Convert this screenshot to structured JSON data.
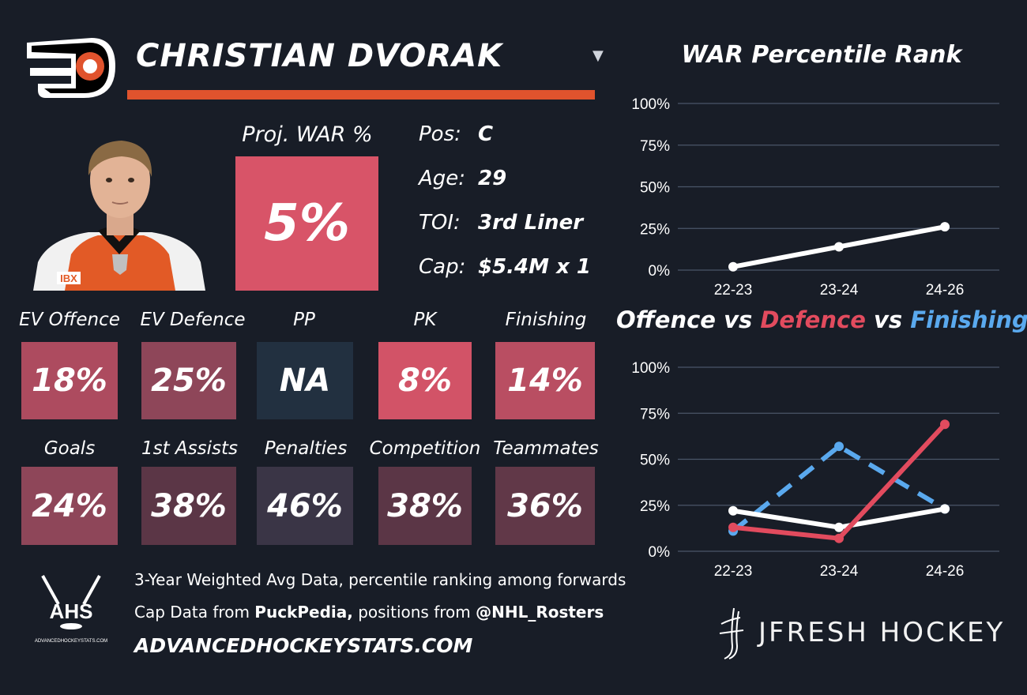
{
  "player": {
    "name": "CHRISTIAN DVORAK",
    "team_logo": "flyers-logo",
    "photo": "player-headshot"
  },
  "projection": {
    "label": "Proj. WAR %",
    "value": "5%"
  },
  "info": [
    {
      "key": "Pos:",
      "value": "C"
    },
    {
      "key": "Age:",
      "value": "29"
    },
    {
      "key": "TOI:",
      "value": "3rd Liner"
    },
    {
      "key": "Cap:",
      "value": "$5.4M x 1"
    }
  ],
  "tiles_row1": [
    {
      "label": "EV Offence",
      "value": "18%",
      "color": "#ad4b5f"
    },
    {
      "label": "EV Defence",
      "value": "25%",
      "color": "#8e4659"
    },
    {
      "label": "PP",
      "value": "NA",
      "color": "#223040"
    },
    {
      "label": "PK",
      "value": "8%",
      "color": "#d25367"
    },
    {
      "label": "Finishing",
      "value": "14%",
      "color": "#b94e62"
    }
  ],
  "tiles_row2": [
    {
      "label": "Goals",
      "value": "24%",
      "color": "#8e4659"
    },
    {
      "label": "1st Assists",
      "value": "38%",
      "color": "#5b3646"
    },
    {
      "label": "Penalties",
      "value": "46%",
      "color": "#3a3546"
    },
    {
      "label": "Competition",
      "value": "38%",
      "color": "#5b3646"
    },
    {
      "label": "Teammates",
      "value": "36%",
      "color": "#613848"
    }
  ],
  "footer": {
    "line1": "3-Year Weighted Avg Data, percentile ranking among forwards",
    "line2_prefix": "Cap Data from ",
    "line2_bold1": "PuckPedia,",
    "line2_mid": " positions from ",
    "line2_bold2": "@NHL_Rosters",
    "site": "ADVANCEDHOCKEYSTATS.COM",
    "ahs_logo_text": "AHS",
    "ahs_logo_small": "ADVANCEDHOCKEYSTATS.COM"
  },
  "brand": {
    "name": "JFRESH HOCKEY"
  },
  "colors": {
    "accent_orange": "#e0532d",
    "defence_red": "#e24b5e",
    "finishing_blue": "#5aa9ee",
    "offence_white": "#ffffff"
  },
  "chart_data": [
    {
      "type": "line",
      "title": "WAR Percentile Rank",
      "categories": [
        "22-23",
        "23-24",
        "24-26"
      ],
      "yticks": [
        "0%",
        "25%",
        "50%",
        "75%",
        "100%"
      ],
      "ylim": [
        0,
        100
      ],
      "grid": true,
      "series": [
        {
          "values": [
            2,
            14,
            26
          ],
          "color": "#ffffff",
          "dashed": false
        }
      ]
    },
    {
      "type": "line",
      "title_parts": [
        {
          "text": "Offence",
          "color": "#ffffff"
        },
        {
          "text": " vs ",
          "color": "#ffffff"
        },
        {
          "text": "Defence",
          "color": "#e24b5e"
        },
        {
          "text": " vs ",
          "color": "#ffffff"
        },
        {
          "text": "Finishing",
          "color": "#5aa9ee"
        }
      ],
      "categories": [
        "22-23",
        "23-24",
        "24-26"
      ],
      "yticks": [
        "0%",
        "25%",
        "50%",
        "75%",
        "100%"
      ],
      "ylim": [
        0,
        100
      ],
      "grid": true,
      "series": [
        {
          "name": "Finishing",
          "values": [
            11,
            57,
            23
          ],
          "color": "#5aa9ee",
          "dashed": true
        },
        {
          "name": "Offence",
          "values": [
            22,
            13,
            23
          ],
          "color": "#ffffff",
          "dashed": false
        },
        {
          "name": "Defence",
          "values": [
            13,
            7,
            69
          ],
          "color": "#e24b5e",
          "dashed": false
        }
      ]
    }
  ]
}
